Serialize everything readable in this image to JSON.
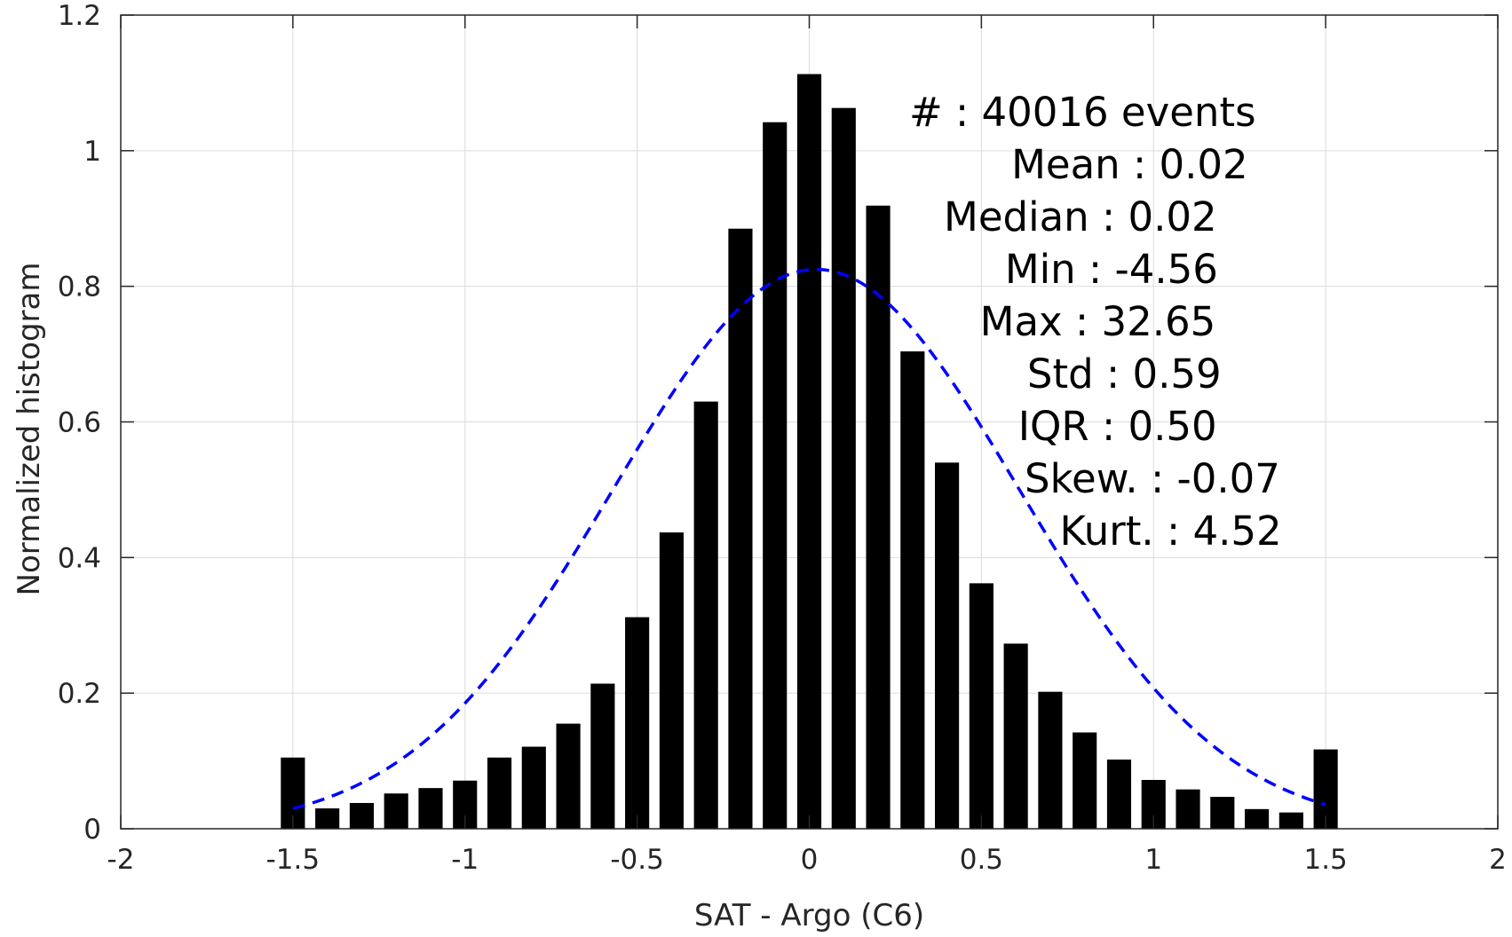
{
  "chart_data": {
    "type": "bar",
    "xlabel": "SAT - Argo (C6)",
    "ylabel": "Normalized histogram",
    "xlim": [
      -2,
      2
    ],
    "ylim": [
      0,
      1.2
    ],
    "grid": true,
    "xticks": [
      -2,
      -1.5,
      -1,
      -0.5,
      0,
      0.5,
      1,
      1.5,
      2
    ],
    "xtick_labels": [
      "-2",
      "-1.5",
      "-1",
      "-0.5",
      "0",
      "0.5",
      "1",
      "1.5",
      "2"
    ],
    "yticks": [
      0,
      0.2,
      0.4,
      0.6,
      0.8,
      1,
      1.2
    ],
    "ytick_labels": [
      "0",
      "0.2",
      "0.4",
      "0.6",
      "0.8",
      "1",
      "1.2"
    ],
    "bar_width": 0.07,
    "x": [
      -1.5,
      -1.4,
      -1.3,
      -1.2,
      -1.1,
      -1.0,
      -0.9,
      -0.8,
      -0.7,
      -0.6,
      -0.5,
      -0.4,
      -0.3,
      -0.2,
      -0.1,
      0.0,
      0.1,
      0.2,
      0.3,
      0.4,
      0.5,
      0.6,
      0.7,
      0.8,
      0.9,
      1.0,
      1.1,
      1.2,
      1.3,
      1.4,
      1.5
    ],
    "values": [
      0.105,
      0.03,
      0.038,
      0.052,
      0.06,
      0.071,
      0.105,
      0.121,
      0.155,
      0.214,
      0.312,
      0.437,
      0.63,
      0.885,
      1.042,
      1.113,
      1.063,
      0.919,
      0.704,
      0.54,
      0.362,
      0.273,
      0.202,
      0.142,
      0.102,
      0.072,
      0.058,
      0.047,
      0.029,
      0.024,
      0.117
    ],
    "fit": {
      "type": "gaussian",
      "line_style": "dashed",
      "color": "#0000ff",
      "mean": 0.02,
      "std": 0.59,
      "peak": 0.825,
      "x_range": [
        -1.5,
        1.5
      ]
    },
    "colors": {
      "bars": "#000000",
      "fit": "#0000ff",
      "grid": "#dcdcdc",
      "axes": "#262626"
    },
    "annotation": [
      "#  : 40016 events",
      "Mean : 0.02",
      "Median : 0.02",
      "Min : -4.56",
      "Max : 32.65",
      "Std : 0.59",
      "IQR : 0.50",
      "Skew. : -0.07",
      "Kurt. : 4.52"
    ]
  }
}
